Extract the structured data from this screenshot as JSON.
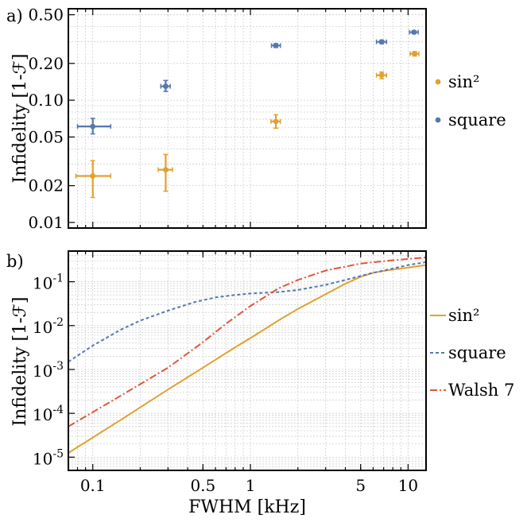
{
  "chart_data": [
    {
      "type": "scatter",
      "panel_label": "a)",
      "ylabel": "Infidelity [1-ℱ]",
      "xlabel": "",
      "x_scale": "log",
      "y_scale": "log",
      "xlim": [
        0.07,
        13
      ],
      "ylim": [
        0.009,
        0.56
      ],
      "yticks": [
        0.01,
        0.02,
        0.05,
        0.1,
        0.2,
        0.5
      ],
      "ytick_labels": [
        "0.01",
        "0.02",
        "0.05",
        "0.10",
        "0.20",
        "0.50"
      ],
      "grid": true,
      "legend_position": "right",
      "series": [
        {
          "name": "sin²",
          "color": "#e1a12f",
          "points": [
            {
              "x": 0.1,
              "y": 0.024,
              "xerr": [
                0.078,
                0.13
              ],
              "yerr": [
                0.016,
                0.032
              ]
            },
            {
              "x": 0.29,
              "y": 0.027,
              "xerr": [
                0.26,
                0.32
              ],
              "yerr": [
                0.018,
                0.036
              ]
            },
            {
              "x": 1.45,
              "y": 0.067,
              "xerr": [
                1.35,
                1.55
              ],
              "yerr": [
                0.059,
                0.076
              ]
            },
            {
              "x": 6.8,
              "y": 0.16,
              "xerr": [
                6.3,
                7.3
              ],
              "yerr": [
                0.15,
                0.17
              ]
            },
            {
              "x": 11.0,
              "y": 0.24,
              "xerr": [
                10.3,
                11.7
              ],
              "yerr": [
                0.23,
                0.25
              ]
            }
          ]
        },
        {
          "name": "square",
          "color": "#5678b0",
          "points": [
            {
              "x": 0.1,
              "y": 0.061,
              "xerr": [
                0.08,
                0.13
              ],
              "yerr": [
                0.053,
                0.071
              ]
            },
            {
              "x": 0.29,
              "y": 0.13,
              "xerr": [
                0.27,
                0.31
              ],
              "yerr": [
                0.118,
                0.145
              ]
            },
            {
              "x": 1.45,
              "y": 0.28,
              "xerr": [
                1.36,
                1.55
              ],
              "yerr": [
                0.27,
                0.29
              ]
            },
            {
              "x": 6.8,
              "y": 0.3,
              "xerr": [
                6.3,
                7.3
              ],
              "yerr": [
                0.29,
                0.31
              ]
            },
            {
              "x": 10.9,
              "y": 0.36,
              "xerr": [
                10.2,
                11.6
              ],
              "yerr": [
                0.35,
                0.37
              ]
            }
          ]
        }
      ]
    },
    {
      "type": "line",
      "panel_label": "b)",
      "ylabel": "Infidelity [1-ℱ]",
      "xlabel": "FWHM [kHz]",
      "x_scale": "log",
      "y_scale": "log",
      "xlim": [
        0.07,
        13
      ],
      "ylim": [
        5e-06,
        0.5
      ],
      "xticks": [
        0.1,
        0.5,
        1,
        5,
        10
      ],
      "xtick_labels": [
        "0.1",
        "0.5",
        "1",
        "5",
        "10"
      ],
      "yticks": [
        1e-05,
        0.0001,
        0.001,
        0.01,
        0.1
      ],
      "ytick_bases": [
        "10",
        "10",
        "10",
        "10",
        "10"
      ],
      "ytick_exps": [
        "-5",
        "-4",
        "-3",
        "-2",
        "-1"
      ],
      "grid": true,
      "legend_position": "right",
      "series": [
        {
          "name": "sin²",
          "color": "#e1a12f",
          "dash": "solid",
          "x": [
            0.07,
            0.15,
            0.3,
            0.5,
            0.8,
            1.0,
            1.5,
            2.0,
            3.0,
            4.0,
            5.0,
            6.0,
            8.0,
            10.0,
            13.0
          ],
          "y": [
            1.25e-05,
            7e-05,
            0.00035,
            0.0011,
            0.0032,
            0.0052,
            0.013,
            0.024,
            0.052,
            0.09,
            0.13,
            0.16,
            0.19,
            0.21,
            0.24
          ]
        },
        {
          "name": "square",
          "color": "#5678b0",
          "dash": "4 3",
          "x": [
            0.07,
            0.1,
            0.15,
            0.2,
            0.3,
            0.45,
            0.6,
            0.8,
            1.0,
            1.5,
            2.0,
            3.0,
            4.0,
            6.0,
            8.0,
            10.0,
            13.0
          ],
          "y": [
            0.0015,
            0.0035,
            0.008,
            0.013,
            0.022,
            0.035,
            0.044,
            0.05,
            0.054,
            0.058,
            0.065,
            0.085,
            0.11,
            0.16,
            0.2,
            0.24,
            0.28
          ]
        },
        {
          "name": "Walsh 7",
          "color": "#e2553a",
          "dash": "9 3 2 3",
          "x": [
            0.07,
            0.15,
            0.3,
            0.5,
            0.7,
            1.0,
            1.5,
            2.0,
            3.0,
            5.0,
            8.0,
            10.0,
            13.0
          ],
          "y": [
            5e-05,
            0.00025,
            0.0011,
            0.0042,
            0.011,
            0.028,
            0.07,
            0.11,
            0.18,
            0.26,
            0.31,
            0.33,
            0.36
          ]
        }
      ]
    }
  ]
}
